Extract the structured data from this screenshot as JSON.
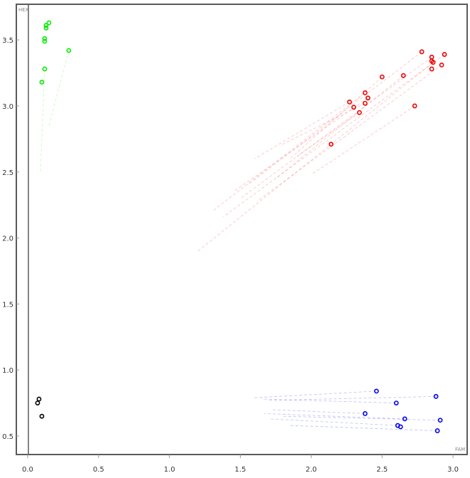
{
  "chart_data": {
    "type": "scatter",
    "xlabel": "FAM",
    "ylabel": "HEX",
    "xlim": [
      -0.08,
      3.1
    ],
    "ylim": [
      0.36,
      3.77
    ],
    "x_ticks": [
      "0.0",
      "0.5",
      "1.0",
      "1.5",
      "2.0",
      "2.5",
      "3.0"
    ],
    "y_ticks": [
      "0.5",
      "1.0",
      "1.5",
      "2.0",
      "2.5",
      "3.0",
      "3.5"
    ],
    "grid": false,
    "marker": "open-circle",
    "series": [
      {
        "color": "#00ee00",
        "points": [
          [
            0.15,
            3.63
          ],
          [
            0.13,
            3.61
          ],
          [
            0.13,
            3.59
          ],
          [
            0.12,
            3.51
          ],
          [
            0.12,
            3.49
          ],
          [
            0.29,
            3.42
          ],
          [
            0.12,
            3.28
          ],
          [
            0.1,
            3.18
          ]
        ],
        "trails": [
          [
            [
              0.12,
              3.28
            ],
            [
              0.09,
              2.5
            ]
          ],
          [
            [
              0.29,
              3.42
            ],
            [
              0.15,
              2.85
            ]
          ]
        ]
      },
      {
        "color": "#ee0000",
        "points": [
          [
            2.78,
            3.41
          ],
          [
            2.94,
            3.39
          ],
          [
            2.85,
            3.37
          ],
          [
            2.86,
            3.33
          ],
          [
            2.85,
            3.34
          ],
          [
            2.92,
            3.31
          ],
          [
            2.85,
            3.28
          ],
          [
            2.65,
            3.23
          ],
          [
            2.5,
            3.22
          ],
          [
            2.38,
            3.1
          ],
          [
            2.4,
            3.06
          ],
          [
            2.27,
            3.03
          ],
          [
            2.38,
            3.02
          ],
          [
            2.3,
            2.99
          ],
          [
            2.34,
            2.95
          ],
          [
            2.73,
            3.0
          ],
          [
            2.14,
            2.71
          ]
        ],
        "trails": [
          [
            [
              2.78,
              3.41
            ],
            [
              1.55,
              2.4
            ]
          ],
          [
            [
              2.94,
              3.39
            ],
            [
              1.38,
              2.16
            ]
          ],
          [
            [
              2.85,
              3.37
            ],
            [
              1.5,
              2.3
            ]
          ],
          [
            [
              2.86,
              3.33
            ],
            [
              1.2,
              1.9
            ]
          ],
          [
            [
              2.92,
              3.31
            ],
            [
              1.62,
              2.28
            ]
          ],
          [
            [
              2.65,
              3.23
            ],
            [
              1.75,
              2.45
            ]
          ],
          [
            [
              2.5,
              3.22
            ],
            [
              1.85,
              2.6
            ]
          ],
          [
            [
              2.38,
              3.1
            ],
            [
              1.3,
              2.2
            ]
          ],
          [
            [
              2.4,
              3.06
            ],
            [
              1.45,
              2.35
            ]
          ],
          [
            [
              2.27,
              3.03
            ],
            [
              1.6,
              2.6
            ]
          ],
          [
            [
              2.38,
              3.02
            ],
            [
              1.78,
              2.7
            ]
          ],
          [
            [
              2.73,
              3.0
            ],
            [
              2.0,
              2.48
            ]
          ],
          [
            [
              2.34,
              2.95
            ],
            [
              1.9,
              2.62
            ]
          ]
        ]
      },
      {
        "color": "#0000ee",
        "points": [
          [
            2.46,
            0.84
          ],
          [
            2.88,
            0.8
          ],
          [
            2.6,
            0.75
          ],
          [
            2.38,
            0.67
          ],
          [
            2.66,
            0.63
          ],
          [
            2.91,
            0.62
          ],
          [
            2.61,
            0.58
          ],
          [
            2.63,
            0.57
          ],
          [
            2.89,
            0.54
          ]
        ],
        "trails": [
          [
            [
              2.46,
              0.84
            ],
            [
              1.6,
              0.79
            ]
          ],
          [
            [
              2.88,
              0.8
            ],
            [
              1.7,
              0.77
            ]
          ],
          [
            [
              2.6,
              0.75
            ],
            [
              1.65,
              0.78
            ]
          ],
          [
            [
              2.38,
              0.67
            ],
            [
              1.72,
              0.7
            ]
          ],
          [
            [
              2.66,
              0.63
            ],
            [
              1.67,
              0.67
            ]
          ],
          [
            [
              2.91,
              0.62
            ],
            [
              1.8,
              0.65
            ]
          ],
          [
            [
              2.61,
              0.58
            ],
            [
              1.7,
              0.63
            ]
          ],
          [
            [
              2.89,
              0.54
            ],
            [
              1.85,
              0.58
            ]
          ]
        ]
      },
      {
        "color": "#000000",
        "points": [
          [
            0.08,
            0.78
          ],
          [
            0.07,
            0.75
          ],
          [
            0.1,
            0.65
          ]
        ],
        "trails": []
      }
    ]
  }
}
